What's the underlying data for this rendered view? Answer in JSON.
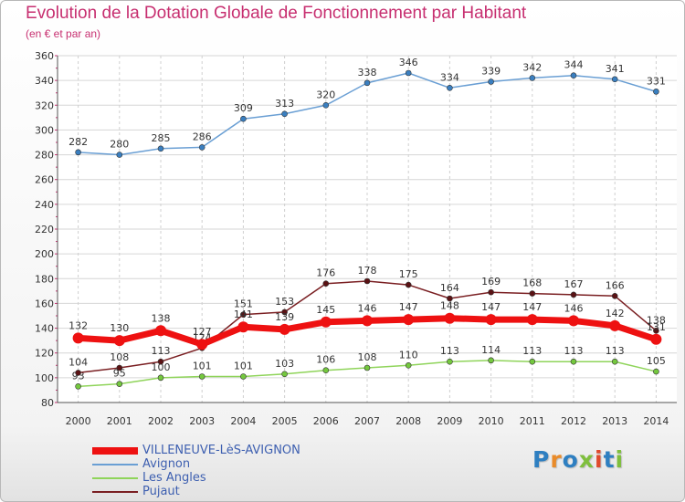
{
  "title": "Evolution de la Dotation Globale de Fonctionnement par Habitant",
  "subtitle": "(en € et par an)",
  "logo": {
    "text": "Proxiti",
    "letter_colors": [
      "#2e7fc1",
      "#e98b2a",
      "#2e7fc1",
      "#7fbf3d",
      "#e04a2d",
      "#2e7fc1",
      "#7fbf3d"
    ]
  },
  "chart_data": {
    "type": "line",
    "x": [
      "2000",
      "2001",
      "2002",
      "2003",
      "2004",
      "2005",
      "2006",
      "2007",
      "2008",
      "2009",
      "2010",
      "2011",
      "2012",
      "2013",
      "2014"
    ],
    "ylim": [
      80,
      360
    ],
    "yticks": [
      80,
      100,
      120,
      140,
      160,
      180,
      200,
      220,
      240,
      260,
      280,
      300,
      320,
      340,
      360
    ],
    "grid": true,
    "legend_position": "bottom-left",
    "series": [
      {
        "name": "Avignon",
        "color": "#6a9fd4",
        "marker": "#3a7fc0",
        "values": [
          282,
          280,
          285,
          286,
          309,
          313,
          320,
          338,
          346,
          334,
          339,
          342,
          344,
          341,
          331
        ]
      },
      {
        "name": "Les Angles",
        "color": "#8fd45a",
        "marker": "#74c83e",
        "values": [
          93,
          95,
          100,
          101,
          101,
          103,
          106,
          108,
          110,
          113,
          114,
          113,
          113,
          113,
          105
        ]
      },
      {
        "name": "Pujaut",
        "color": "#7a1f22",
        "marker": "#5a1214",
        "values": [
          104,
          108,
          113,
          124,
          151,
          153,
          176,
          178,
          175,
          164,
          169,
          168,
          167,
          166,
          138
        ]
      },
      {
        "name": "VILLENEUVE-LèS-AVIGNON",
        "color": "#ee1111",
        "marker": "#ee1111",
        "values": [
          132,
          130,
          138,
          127,
          141,
          139,
          145,
          146,
          147,
          148,
          147,
          147,
          146,
          142,
          131
        ]
      }
    ]
  },
  "legend": [
    {
      "label": "VILLENEUVE-LèS-AVIGNON",
      "color": "#ee1111"
    },
    {
      "label": "Avignon",
      "color": "#6a9fd4"
    },
    {
      "label": "Les Angles",
      "color": "#8fd45a"
    },
    {
      "label": "Pujaut",
      "color": "#7a1f22"
    }
  ]
}
